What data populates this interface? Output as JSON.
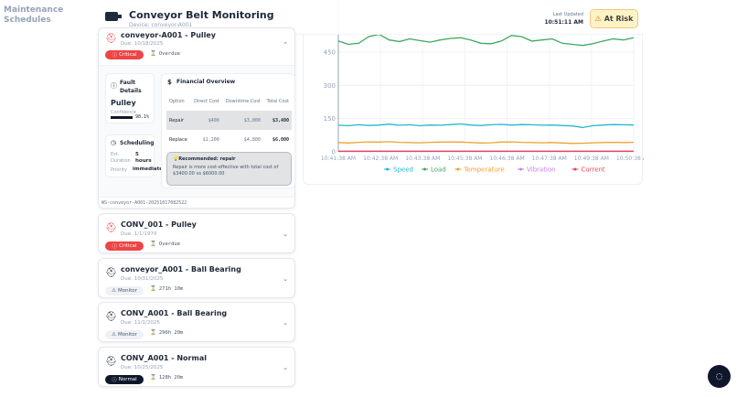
{
  "header": {
    "title": "Conveyor Belt Monitoring",
    "device": "Device: conveyor-A001",
    "last_updated_label": "Last Updated",
    "last_updated": "10:51:11 AM",
    "status": "At Risk",
    "background_title": "Maintenance Schedules"
  },
  "expanded": {
    "title": "conveyor-A001 - Pulley",
    "due": "Due: 10/18/2025",
    "severity": "Critical",
    "timer": "Overdue",
    "fault": {
      "heading": "Fault Details",
      "name": "Pulley",
      "confidence_label": "Confidence",
      "confidence": "98.1%",
      "confidence_value": 98.1
    },
    "scheduling": {
      "heading": "Scheduling",
      "duration_label": "Est. Duration",
      "duration": "5 hours",
      "priority_label": "Priority",
      "priority": "immediate"
    },
    "financial": {
      "heading": "Financial Overview",
      "columns": [
        "Option",
        "Direct Cost",
        "Downtime Cost",
        "Total Cost"
      ],
      "rows": [
        [
          "Repair",
          "$400",
          "$3,000",
          "$3,400"
        ],
        [
          "Replace",
          "$1,200",
          "$4,800",
          "$6,000"
        ]
      ],
      "recommendation_title": "Recommended: repair",
      "recommendation_text": "Repair is more cost-effective with total cost of $3400.00 vs $6000.00"
    },
    "ws_id": "WS-conveyor-A001-20251017082522"
  },
  "cards": [
    {
      "title": "CONV_001 - Pulley",
      "due": "Due: 1/1/1970",
      "severity": "Critical",
      "timer": "Overdue"
    },
    {
      "title": "conveyor_A001 - Ball Bearing",
      "due": "Due: 10/31/2025",
      "severity": "Monitor",
      "timer": "271h 10m"
    },
    {
      "title": "CONV_A001 - Ball Bearing",
      "due": "Due: 11/1/2025",
      "severity": "Monitor",
      "timer": "296h 20m"
    },
    {
      "title": "CONV_A001 - Normal",
      "due": "Due: 10/25/2025",
      "severity": "Normal",
      "timer": "128h 20m"
    }
  ],
  "chart_data": {
    "type": "line",
    "ylim": [
      0,
      600
    ],
    "yticks": [
      "0",
      "150",
      "300",
      "450"
    ],
    "xticks": [
      "10:41:38 AM",
      "10:42:38 AM",
      "10:43:38 AM",
      "10:45:38 AM",
      "10:46:38 AM",
      "10:47:38 AM",
      "10:49:38 AM",
      "10:50:38 AM"
    ],
    "grid": true,
    "legend": "bottom",
    "series": [
      {
        "name": "Speed",
        "color": "#22b8cf",
        "values": [
          120,
          118,
          122,
          119,
          121,
          125,
          120,
          122,
          118,
          121,
          120,
          123,
          126,
          121,
          119,
          122,
          124,
          121,
          123,
          122,
          120,
          121,
          119,
          117,
          110,
          118,
          121,
          123,
          122,
          121
        ]
      },
      {
        "name": "Load",
        "color": "#3daa5c",
        "values": [
          500,
          485,
          490,
          520,
          530,
          505,
          498,
          510,
          502,
          495,
          505,
          512,
          515,
          505,
          490,
          488,
          500,
          525,
          520,
          500,
          505,
          510,
          490,
          485,
          480,
          488,
          500,
          510,
          505,
          515
        ]
      },
      {
        "name": "Temperature",
        "color": "#f0a030",
        "values": [
          42,
          40,
          43,
          45,
          44,
          46,
          43,
          42,
          41,
          43,
          44,
          45,
          44,
          42,
          40,
          41,
          44,
          45,
          43,
          42,
          41,
          42,
          40,
          38,
          39,
          41,
          42,
          43,
          42,
          43
        ]
      },
      {
        "name": "Vibration",
        "color": "#c77dff",
        "values": [
          2,
          2,
          2,
          2,
          2,
          2,
          2,
          2,
          2,
          2,
          2,
          2,
          2,
          2,
          2,
          2,
          2,
          2,
          2,
          2,
          2,
          2,
          2,
          2,
          2,
          2,
          2,
          2,
          2,
          2
        ]
      },
      {
        "name": "Current",
        "color": "#e8455c",
        "values": [
          3,
          3,
          3,
          3,
          3,
          3,
          3,
          3,
          3,
          3,
          3,
          3,
          3,
          3,
          3,
          3,
          3,
          3,
          3,
          3,
          3,
          3,
          3,
          3,
          3,
          3,
          3,
          3,
          3,
          3
        ]
      }
    ]
  }
}
